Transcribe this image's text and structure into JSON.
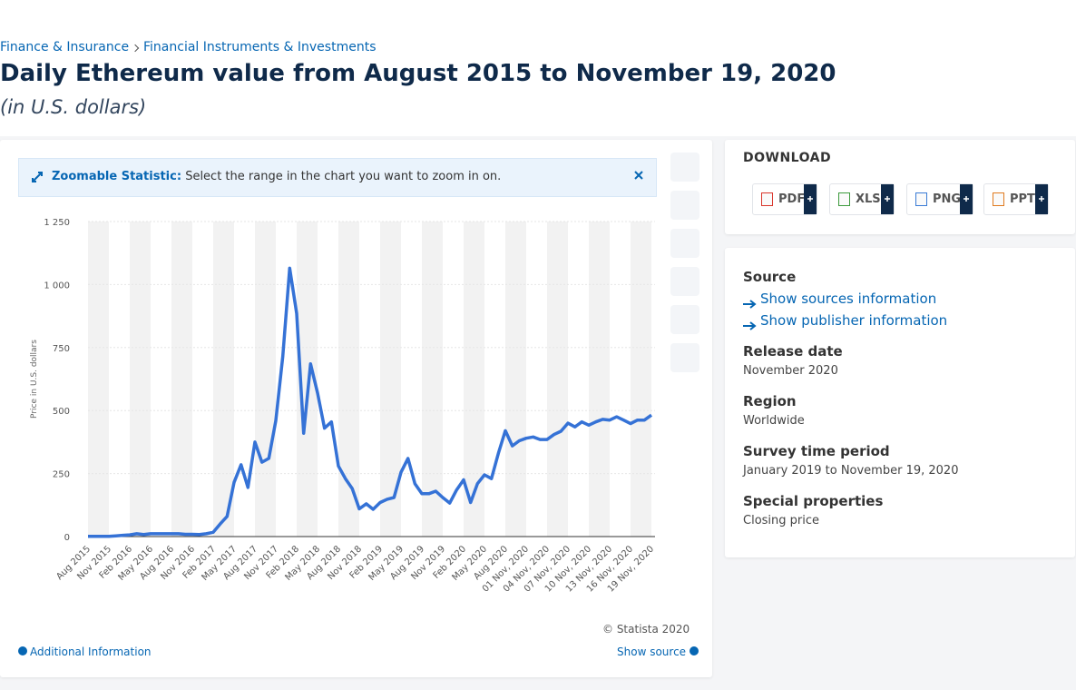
{
  "breadcrumbs": [
    "Finance & Insurance",
    "Financial Instruments & Investments"
  ],
  "title": "Daily Ethereum value from August 2015 to November 19, 2020",
  "subtitle": "(in U.S. dollars)",
  "notice": {
    "label": "Zoomable Statistic:",
    "text": "Select the range in the chart you want to zoom in on."
  },
  "chart_data": {
    "type": "line",
    "y_label": "Price in U.S. dollars",
    "credit": "© Statista 2020",
    "color": "#3572d6",
    "categories": [
      "Aug 2015",
      null,
      null,
      "Nov 2015",
      null,
      null,
      "Feb 2016",
      null,
      null,
      "May 2016",
      null,
      null,
      "Aug 2016",
      null,
      null,
      "Nov 2016",
      null,
      null,
      "Feb 2017",
      null,
      null,
      "May 2017",
      null,
      null,
      "Aug 2017",
      null,
      null,
      "Nov 2017",
      null,
      null,
      "Feb 2018",
      null,
      null,
      "May 2018",
      null,
      null,
      "Aug 2018",
      null,
      null,
      "Nov 2018",
      null,
      null,
      "Feb 2019",
      null,
      null,
      "May 2019",
      null,
      null,
      "Aug 2019",
      null,
      null,
      "Nov 2019",
      null,
      null,
      "Feb 2020",
      null,
      null,
      "May 2020",
      null,
      null,
      "Aug 2020",
      null,
      null,
      "01 Nov, 2020",
      null,
      null,
      "04 Nov, 2020",
      null,
      null,
      "07 Nov, 2020",
      null,
      null,
      "10 Nov, 2020",
      null,
      null,
      "13 Nov, 2020",
      null,
      null,
      "16 Nov, 2020",
      null,
      null,
      "19 Nov, 2020"
    ],
    "values": [
      1,
      1,
      1,
      1,
      3,
      5,
      7,
      11,
      8,
      11,
      11,
      11,
      11,
      11,
      9,
      9,
      8,
      11,
      17,
      50,
      80,
      215,
      285,
      195,
      375,
      295,
      310,
      460,
      715,
      1065,
      885,
      410,
      685,
      570,
      430,
      455,
      280,
      230,
      190,
      110,
      130,
      108,
      135,
      148,
      155,
      255,
      310,
      210,
      170,
      170,
      180,
      155,
      133,
      185,
      225,
      135,
      210,
      245,
      230,
      330,
      420,
      360,
      380,
      390,
      395,
      385,
      385,
      405,
      418,
      450,
      435,
      455,
      442,
      455,
      465,
      462,
      475,
      462,
      448,
      462,
      462,
      482
    ],
    "ylim": [
      0,
      1250
    ],
    "yticks": [
      0,
      250,
      500,
      750,
      {
        "value": 1000,
        "label": "1 000"
      },
      {
        "value": 1250,
        "label": "1 250"
      }
    ],
    "grid": true
  },
  "footer": {
    "additional": "Additional Information",
    "source": "Show source"
  },
  "download": {
    "title": "DOWNLOAD",
    "formats": [
      "PDF",
      "XLS",
      "PNG",
      "PPT"
    ]
  },
  "details": {
    "source_label": "Source",
    "links": [
      "Show sources information",
      "Show publisher information"
    ],
    "items": [
      {
        "label": "Release date",
        "value": "November 2020"
      },
      {
        "label": "Region",
        "value": "Worldwide"
      },
      {
        "label": "Survey time period",
        "value": "January 2019 to November 19, 2020"
      },
      {
        "label": "Special properties",
        "value": "Closing price"
      }
    ]
  }
}
